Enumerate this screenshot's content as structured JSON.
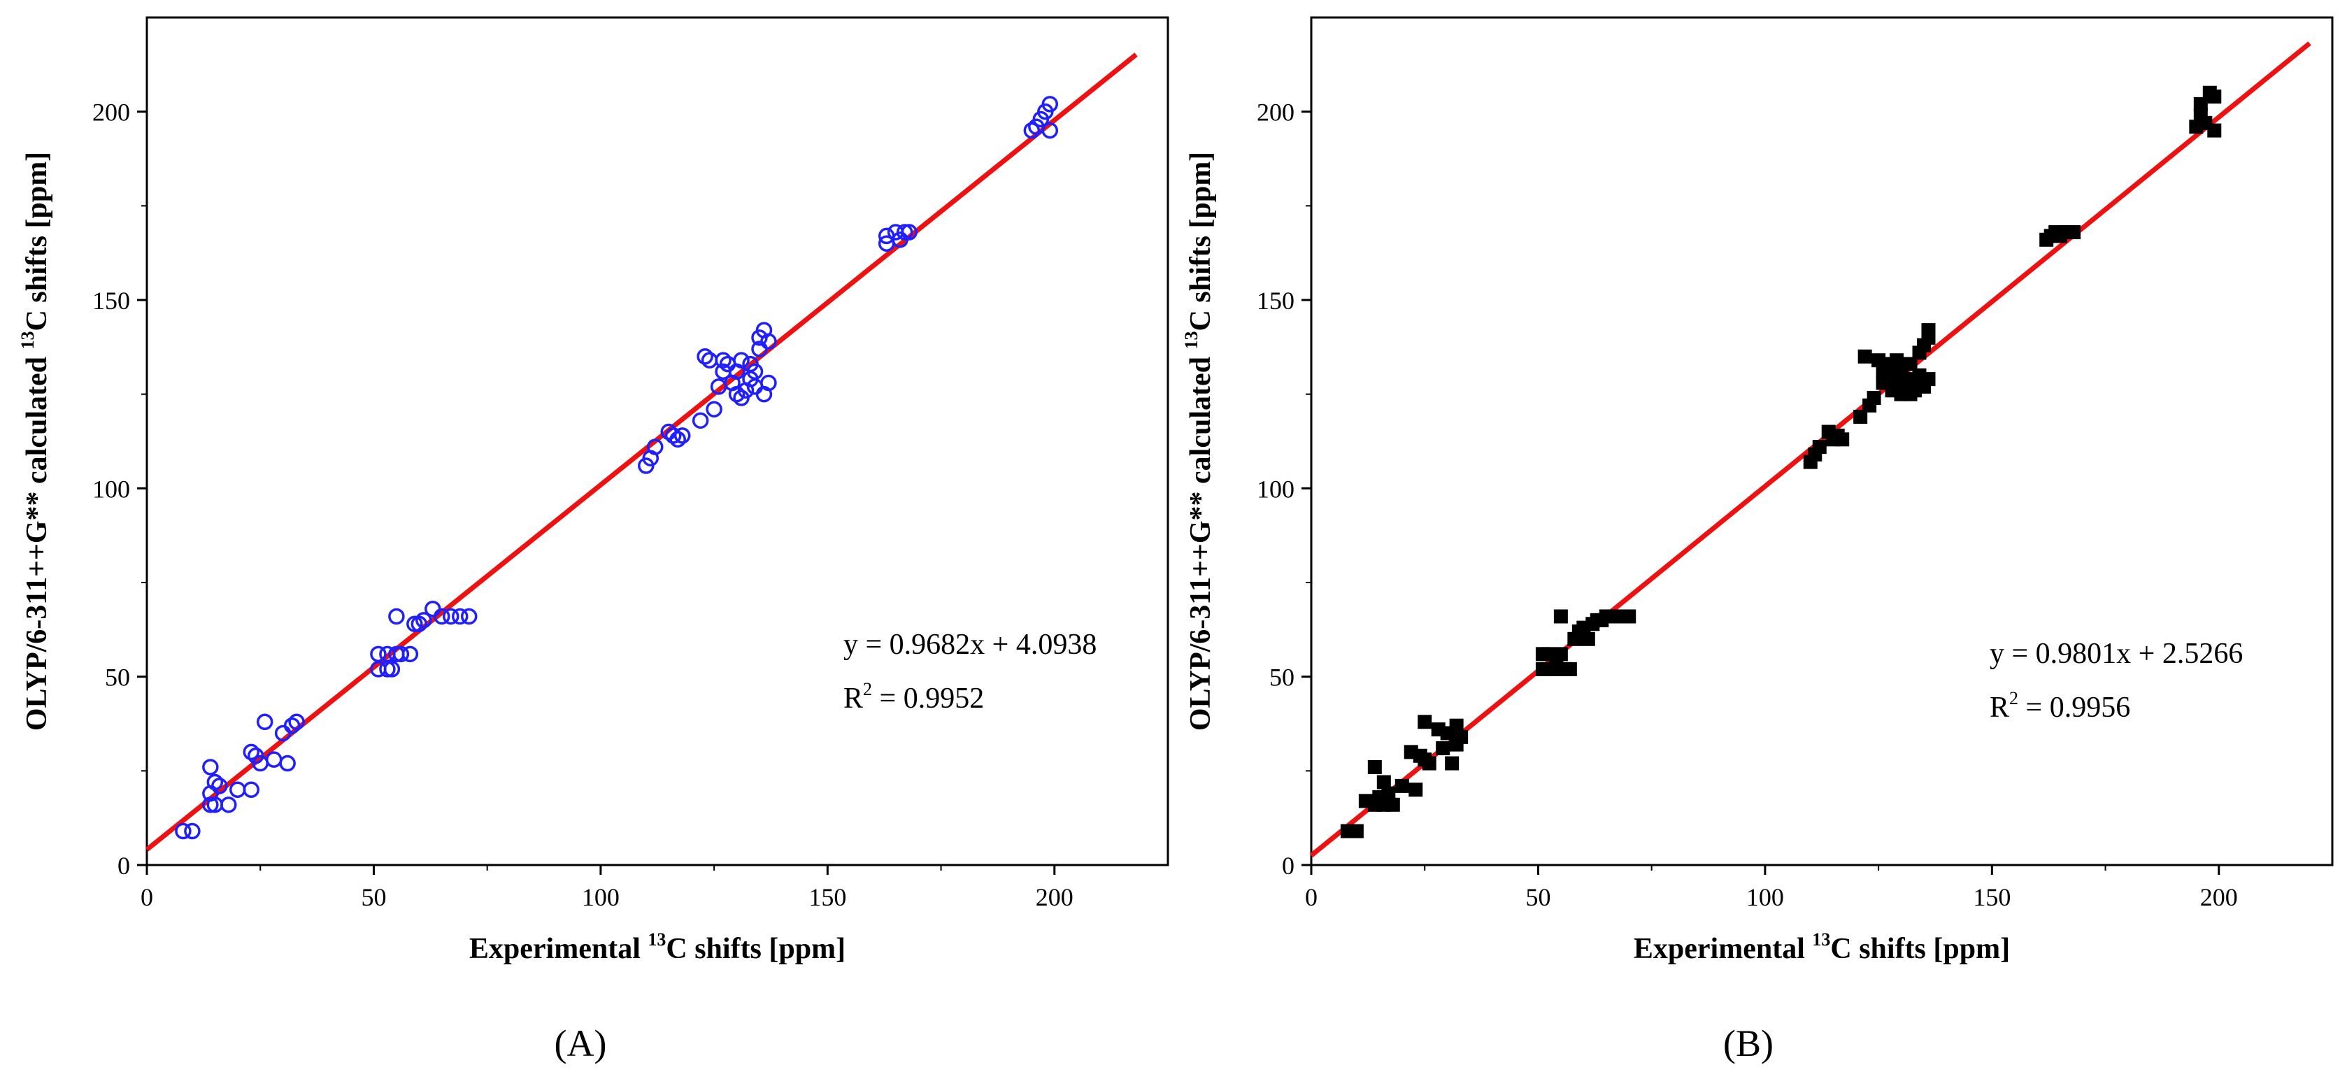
{
  "chart_data": [
    {
      "type": "scatter",
      "panel_label": "(A)",
      "xlabel_pre": "Experimental ",
      "xlabel_sup": "13",
      "xlabel_post": "C shifts [ppm]",
      "ylabel_pre": "OLYP/6-311++G** calculated ",
      "ylabel_sup": "13",
      "ylabel_post": "C shifts [ppm]",
      "xlim": [
        0,
        225
      ],
      "ylim": [
        0,
        225
      ],
      "xticks": [
        0,
        50,
        100,
        150,
        200
      ],
      "yticks": [
        0,
        50,
        100,
        150,
        200
      ],
      "xtick_labels": [
        "0",
        "50",
        "100",
        "150",
        "200"
      ],
      "ytick_labels": [
        "0",
        "50",
        "100",
        "150",
        "200"
      ],
      "marker": "open-circle",
      "marker_color": "#1f1fff",
      "line_color": "#ee1111",
      "fit": {
        "slope": 0.9682,
        "intercept": 4.0938,
        "x_range": [
          0,
          218
        ]
      },
      "equation": "y = 0.9682x + 4.0938",
      "r2_pre": "R",
      "r2_sup": "2",
      "r2_post": " = 0.9952",
      "points": [
        [
          8,
          9
        ],
        [
          10,
          9
        ],
        [
          14,
          16
        ],
        [
          14,
          19
        ],
        [
          15,
          16
        ],
        [
          15,
          22
        ],
        [
          14,
          26
        ],
        [
          16,
          21
        ],
        [
          18,
          16
        ],
        [
          20,
          20
        ],
        [
          23,
          30
        ],
        [
          23,
          20
        ],
        [
          24,
          29
        ],
        [
          25,
          27
        ],
        [
          26,
          38
        ],
        [
          28,
          28
        ],
        [
          30,
          35
        ],
        [
          31,
          27
        ],
        [
          32,
          37
        ],
        [
          33,
          38
        ],
        [
          51,
          52
        ],
        [
          51,
          56
        ],
        [
          53,
          56
        ],
        [
          53,
          52
        ],
        [
          54,
          52
        ],
        [
          55,
          66
        ],
        [
          55,
          56
        ],
        [
          56,
          56
        ],
        [
          58,
          56
        ],
        [
          59,
          64
        ],
        [
          60,
          64
        ],
        [
          61,
          65
        ],
        [
          63,
          68
        ],
        [
          65,
          66
        ],
        [
          67,
          66
        ],
        [
          69,
          66
        ],
        [
          71,
          66
        ],
        [
          110,
          106
        ],
        [
          111,
          108
        ],
        [
          112,
          111
        ],
        [
          115,
          115
        ],
        [
          116,
          114
        ],
        [
          117,
          113
        ],
        [
          118,
          114
        ],
        [
          122,
          118
        ],
        [
          123,
          135
        ],
        [
          124,
          134
        ],
        [
          125,
          121
        ],
        [
          126,
          127
        ],
        [
          127,
          131
        ],
        [
          127,
          134
        ],
        [
          128,
          133
        ],
        [
          129,
          128
        ],
        [
          130,
          125
        ],
        [
          130,
          131
        ],
        [
          131,
          124
        ],
        [
          131,
          134
        ],
        [
          132,
          126
        ],
        [
          133,
          129
        ],
        [
          133,
          133
        ],
        [
          134,
          127
        ],
        [
          134,
          131
        ],
        [
          135,
          137
        ],
        [
          135,
          140
        ],
        [
          136,
          142
        ],
        [
          136,
          125
        ],
        [
          137,
          128
        ],
        [
          137,
          139
        ],
        [
          163,
          165
        ],
        [
          163,
          167
        ],
        [
          165,
          168
        ],
        [
          166,
          166
        ],
        [
          167,
          168
        ],
        [
          168,
          168
        ],
        [
          195,
          195
        ],
        [
          196,
          196
        ],
        [
          197,
          198
        ],
        [
          198,
          200
        ],
        [
          199,
          195
        ],
        [
          199,
          202
        ]
      ]
    },
    {
      "type": "scatter",
      "panel_label": "(B)",
      "xlabel_pre": "Experimental ",
      "xlabel_sup": "13",
      "xlabel_post": "C shifts [ppm]",
      "ylabel_pre": "OLYP/6-311++G** calculated ",
      "ylabel_sup": "13",
      "ylabel_post": "C shifts [ppm]",
      "xlim": [
        0,
        225
      ],
      "ylim": [
        0,
        225
      ],
      "xticks": [
        0,
        50,
        100,
        150,
        200
      ],
      "yticks": [
        0,
        50,
        100,
        150,
        200
      ],
      "xtick_labels": [
        "0",
        "50",
        "100",
        "150",
        "200"
      ],
      "ytick_labels": [
        "0",
        "50",
        "100",
        "150",
        "200"
      ],
      "marker": "filled-square",
      "marker_color": "#000000",
      "line_color": "#ee1111",
      "fit": {
        "slope": 0.9801,
        "intercept": 2.5266,
        "x_range": [
          0,
          220
        ]
      },
      "equation": "y = 0.9801x + 2.5266",
      "r2_pre": "R",
      "r2_sup": "2",
      "r2_post": " = 0.9956",
      "points": [
        [
          8,
          9
        ],
        [
          10,
          9
        ],
        [
          12,
          17
        ],
        [
          14,
          16
        ],
        [
          14,
          26
        ],
        [
          15,
          18
        ],
        [
          16,
          22
        ],
        [
          16,
          16
        ],
        [
          17,
          19
        ],
        [
          18,
          16
        ],
        [
          20,
          21
        ],
        [
          22,
          30
        ],
        [
          23,
          20
        ],
        [
          24,
          29
        ],
        [
          25,
          28
        ],
        [
          25,
          38
        ],
        [
          26,
          27
        ],
        [
          28,
          36
        ],
        [
          29,
          31
        ],
        [
          30,
          35
        ],
        [
          31,
          27
        ],
        [
          32,
          37
        ],
        [
          32,
          32
        ],
        [
          33,
          34
        ],
        [
          51,
          52
        ],
        [
          51,
          56
        ],
        [
          52,
          56
        ],
        [
          53,
          52
        ],
        [
          54,
          53
        ],
        [
          55,
          66
        ],
        [
          55,
          56
        ],
        [
          56,
          52
        ],
        [
          57,
          52
        ],
        [
          58,
          60
        ],
        [
          59,
          62
        ],
        [
          60,
          63
        ],
        [
          61,
          60
        ],
        [
          62,
          64
        ],
        [
          63,
          65
        ],
        [
          64,
          65
        ],
        [
          65,
          66
        ],
        [
          66,
          66
        ],
        [
          68,
          66
        ],
        [
          70,
          66
        ],
        [
          110,
          107
        ],
        [
          111,
          109
        ],
        [
          112,
          111
        ],
        [
          114,
          115
        ],
        [
          115,
          113
        ],
        [
          116,
          114
        ],
        [
          117,
          113
        ],
        [
          121,
          119
        ],
        [
          122,
          135
        ],
        [
          123,
          122
        ],
        [
          124,
          124
        ],
        [
          125,
          134
        ],
        [
          126,
          128
        ],
        [
          126,
          131
        ],
        [
          127,
          133
        ],
        [
          128,
          126
        ],
        [
          128,
          130
        ],
        [
          129,
          127
        ],
        [
          129,
          134
        ],
        [
          130,
          125
        ],
        [
          130,
          132
        ],
        [
          131,
          127
        ],
        [
          131,
          129
        ],
        [
          132,
          125
        ],
        [
          132,
          133
        ],
        [
          133,
          128
        ],
        [
          133,
          126
        ],
        [
          134,
          130
        ],
        [
          134,
          136
        ],
        [
          135,
          138
        ],
        [
          135,
          127
        ],
        [
          136,
          140
        ],
        [
          136,
          142
        ],
        [
          136,
          129
        ],
        [
          162,
          166
        ],
        [
          163,
          167
        ],
        [
          164,
          168
        ],
        [
          165,
          167
        ],
        [
          166,
          168
        ],
        [
          167,
          168
        ],
        [
          168,
          168
        ],
        [
          195,
          196
        ],
        [
          196,
          199
        ],
        [
          196,
          202
        ],
        [
          197,
          197
        ],
        [
          198,
          205
        ],
        [
          199,
          195
        ],
        [
          199,
          204
        ]
      ]
    }
  ]
}
